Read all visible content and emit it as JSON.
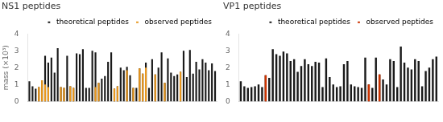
{
  "chart_data": [
    {
      "type": "bar",
      "title": "NS1 peptides",
      "ylabel": "mass (×10³)",
      "categories": [
        null,
        null,
        null,
        null,
        null,
        null,
        null,
        null,
        null,
        null,
        null,
        null,
        null,
        null,
        null,
        null,
        null,
        null,
        null,
        null,
        null,
        null,
        null,
        null,
        null,
        null,
        null,
        null,
        null,
        null,
        null,
        null,
        null,
        null,
        null,
        null,
        null,
        null,
        null,
        null,
        null,
        null,
        null,
        null,
        null,
        null,
        null,
        null,
        null,
        null,
        null,
        null,
        null,
        null,
        null,
        null,
        null,
        null,
        null,
        null
      ],
      "series": [
        {
          "name": "theoretical peptides",
          "color": "#1a1a1a",
          "values": [
            1.2,
            0.9,
            0.75,
            0.85,
            1.25,
            2.7,
            2.3,
            2.6,
            1.7,
            3.15,
            0.85,
            0.8,
            2.7,
            0.9,
            0.8,
            2.85,
            2.8,
            3.1,
            0.8,
            0.8,
            3.0,
            2.9,
            1.1,
            1.35,
            1.5,
            2.35,
            2.9,
            0.75,
            0.9,
            2.0,
            1.85,
            2.05,
            1.55,
            0.8,
            0.8,
            1.95,
            1.65,
            2.3,
            0.8,
            2.5,
            1.6,
            2.0,
            2.9,
            1.1,
            2.55,
            1.7,
            1.5,
            1.6,
            1.75,
            3.0,
            1.45,
            3.05,
            1.65,
            2.35,
            1.9,
            2.5,
            2.3,
            1.85,
            2.25,
            1.8
          ]
        },
        {
          "name": "observed peptides",
          "color": "#E8971E",
          "values": [
            null,
            null,
            null,
            0.85,
            1.25,
            1.0,
            0.85,
            null,
            null,
            null,
            0.85,
            0.8,
            null,
            0.9,
            0.8,
            null,
            null,
            null,
            null,
            null,
            null,
            0.85,
            1.1,
            null,
            null,
            null,
            null,
            0.75,
            0.9,
            null,
            null,
            1.85,
            null,
            0.8,
            null,
            1.95,
            1.65,
            2.0,
            null,
            null,
            1.6,
            null,
            null,
            1.1,
            null,
            null,
            null,
            null,
            1.75,
            null,
            null,
            null,
            null,
            null,
            null,
            null,
            null,
            null,
            null,
            null
          ]
        }
      ],
      "ylim": [
        0,
        4.0
      ],
      "yticks": [
        0,
        1,
        2,
        3,
        4
      ],
      "grid": false,
      "legend": "upper right"
    },
    {
      "type": "bar",
      "title": "VP1 peptides",
      "categories": [
        null,
        null,
        null,
        null,
        null,
        null,
        null,
        null,
        null,
        null,
        null,
        null,
        null,
        null,
        null,
        null,
        null,
        null,
        null,
        null,
        null,
        null,
        null,
        null,
        null,
        null,
        null,
        null,
        null,
        null,
        null,
        null,
        null,
        null,
        null,
        null,
        null,
        null,
        null,
        null,
        null,
        null,
        null,
        null,
        null,
        null,
        null,
        null,
        null,
        null,
        null,
        null,
        null,
        null,
        null,
        null
      ],
      "series": [
        {
          "name": "theoretical peptides",
          "color": "#1a1a1a",
          "values": [
            1.2,
            0.9,
            0.8,
            0.85,
            0.9,
            1.0,
            0.85,
            1.55,
            1.4,
            3.1,
            2.8,
            2.7,
            2.95,
            2.85,
            2.4,
            2.5,
            1.75,
            2.1,
            2.5,
            2.2,
            2.1,
            2.35,
            2.3,
            0.85,
            2.55,
            1.45,
            1.0,
            0.85,
            0.9,
            2.2,
            2.4,
            1.0,
            0.9,
            0.85,
            0.8,
            2.6,
            1.0,
            0.8,
            2.6,
            1.6,
            1.3,
            1.0,
            2.5,
            2.4,
            0.85,
            3.25,
            2.3,
            2.0,
            1.9,
            2.5,
            2.4,
            0.9,
            1.8,
            2.0,
            2.5,
            2.65
          ]
        },
        {
          "name": "observed peptides",
          "color": "#CC3300",
          "values": [
            null,
            null,
            null,
            null,
            null,
            null,
            null,
            1.55,
            null,
            null,
            null,
            null,
            null,
            null,
            null,
            null,
            null,
            null,
            null,
            null,
            null,
            null,
            null,
            null,
            null,
            null,
            null,
            null,
            null,
            null,
            null,
            null,
            null,
            null,
            null,
            null,
            1.0,
            null,
            null,
            1.6,
            null,
            null,
            null,
            null,
            null,
            null,
            null,
            null,
            null,
            null,
            null,
            null,
            null,
            null,
            null,
            null
          ]
        }
      ],
      "ylim": [
        0,
        4.0
      ],
      "yticks": [
        0,
        1,
        2,
        3,
        4
      ],
      "grid": false,
      "legend": "upper right"
    }
  ]
}
